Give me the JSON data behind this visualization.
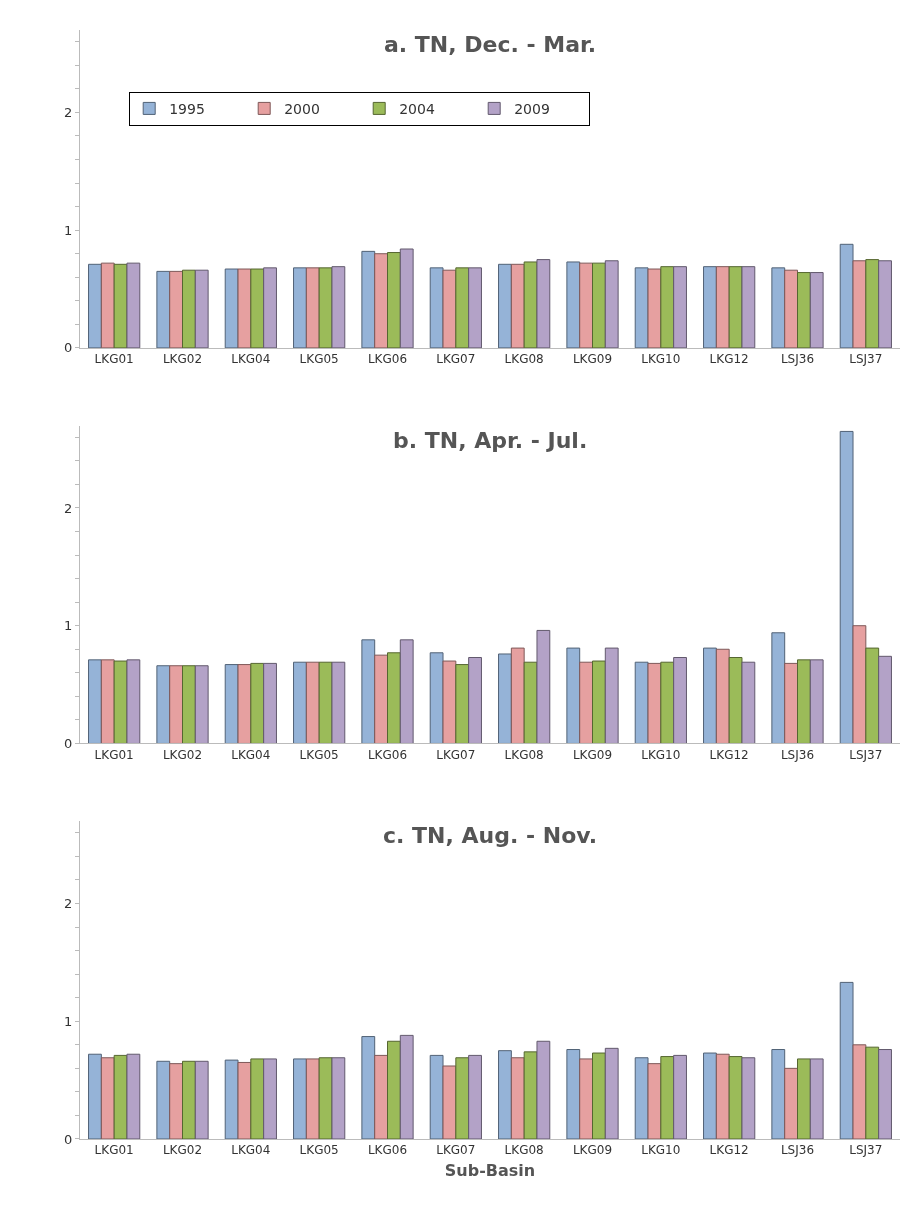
{
  "chart_data": [
    {
      "type": "bar",
      "title": "a. TN, Dec. - Mar.",
      "categories": [
        "LKG01",
        "LKG02",
        "LKG04",
        "LKG05",
        "LKG06",
        "LKG07",
        "LKG08",
        "LKG09",
        "LKG10",
        "LKG12",
        "LSJ36",
        "LSJ37"
      ],
      "ylim": [
        0,
        2.7
      ],
      "yticks": [
        0,
        {
          "value": 0.2,
          "label": null
        },
        {
          "value": 0.4,
          "label": null
        },
        {
          "value": 0.6,
          "label": null
        },
        {
          "value": 0.8,
          "label": null
        },
        1,
        {
          "value": 1.2,
          "label": null
        },
        {
          "value": 1.4,
          "label": null
        },
        {
          "value": 1.6,
          "label": null
        },
        {
          "value": 1.8,
          "label": null
        },
        2,
        {
          "value": 2.2,
          "label": null
        },
        {
          "value": 2.4,
          "label": null
        },
        {
          "value": 2.6,
          "label": null
        }
      ],
      "legend": "top left",
      "series": [
        {
          "name": "1995",
          "color": "#95b3d7",
          "values": [
            0.71,
            0.65,
            0.67,
            0.68,
            0.82,
            0.68,
            0.71,
            0.73,
            0.68,
            0.69,
            0.68,
            0.88
          ]
        },
        {
          "name": "2000",
          "color": "#e6a0a0",
          "values": [
            0.72,
            0.65,
            0.67,
            0.68,
            0.8,
            0.66,
            0.71,
            0.72,
            0.67,
            0.69,
            0.66,
            0.74
          ]
        },
        {
          "name": "2004",
          "color": "#9bbb59",
          "values": [
            0.71,
            0.66,
            0.67,
            0.68,
            0.81,
            0.68,
            0.73,
            0.72,
            0.69,
            0.69,
            0.64,
            0.75
          ]
        },
        {
          "name": "2009",
          "color": "#b3a2c7",
          "values": [
            0.72,
            0.66,
            0.68,
            0.69,
            0.84,
            0.68,
            0.75,
            0.74,
            0.69,
            0.69,
            0.64,
            0.74
          ]
        }
      ]
    },
    {
      "type": "bar",
      "title": "b. TN, Apr. - Jul.",
      "categories": [
        "LKG01",
        "LKG02",
        "LKG04",
        "LKG05",
        "LKG06",
        "LKG07",
        "LKG08",
        "LKG09",
        "LKG10",
        "LKG12",
        "LSJ36",
        "LSJ37"
      ],
      "ylim": [
        0,
        2.7
      ],
      "yticks": [
        0,
        {
          "value": 0.2,
          "label": null
        },
        {
          "value": 0.4,
          "label": null
        },
        {
          "value": 0.6,
          "label": null
        },
        {
          "value": 0.8,
          "label": null
        },
        1,
        {
          "value": 1.2,
          "label": null
        },
        {
          "value": 1.4,
          "label": null
        },
        {
          "value": 1.6,
          "label": null
        },
        {
          "value": 1.8,
          "label": null
        },
        2,
        {
          "value": 2.2,
          "label": null
        },
        {
          "value": 2.4,
          "label": null
        },
        {
          "value": 2.6,
          "label": null
        }
      ],
      "legend": false,
      "series": [
        {
          "color": "#95b3d7",
          "values": [
            0.71,
            0.66,
            0.67,
            0.69,
            0.88,
            0.77,
            0.76,
            0.81,
            0.69,
            0.81,
            0.94,
            2.65
          ]
        },
        {
          "color": "#e6a0a0",
          "values": [
            0.71,
            0.66,
            0.67,
            0.69,
            0.75,
            0.7,
            0.81,
            0.69,
            0.68,
            0.8,
            0.68,
            1.0
          ]
        },
        {
          "color": "#9bbb59",
          "values": [
            0.7,
            0.66,
            0.68,
            0.69,
            0.77,
            0.67,
            0.69,
            0.7,
            0.69,
            0.73,
            0.71,
            0.81
          ]
        },
        {
          "color": "#b3a2c7",
          "values": [
            0.71,
            0.66,
            0.68,
            0.69,
            0.88,
            0.73,
            0.96,
            0.81,
            0.73,
            0.69,
            0.71,
            0.74
          ]
        }
      ]
    },
    {
      "type": "bar",
      "title": "c. TN, Aug. - Nov.",
      "xlabel": "Sub-Basin",
      "categories": [
        "LKG01",
        "LKG02",
        "LKG04",
        "LKG05",
        "LKG06",
        "LKG07",
        "LKG08",
        "LKG09",
        "LKG10",
        "LKG12",
        "LSJ36",
        "LSJ37"
      ],
      "ylim": [
        0,
        2.7
      ],
      "yticks": [
        0,
        {
          "value": 0.2,
          "label": null
        },
        {
          "value": 0.4,
          "label": null
        },
        {
          "value": 0.6,
          "label": null
        },
        {
          "value": 0.8,
          "label": null
        },
        1,
        {
          "value": 1.2,
          "label": null
        },
        {
          "value": 1.4,
          "label": null
        },
        {
          "value": 1.6,
          "label": null
        },
        {
          "value": 1.8,
          "label": null
        },
        2,
        {
          "value": 2.2,
          "label": null
        },
        {
          "value": 2.4,
          "label": null
        },
        {
          "value": 2.6,
          "label": null
        }
      ],
      "legend": false,
      "series": [
        {
          "color": "#95b3d7",
          "values": [
            0.72,
            0.66,
            0.67,
            0.68,
            0.87,
            0.71,
            0.75,
            0.76,
            0.69,
            0.73,
            0.76,
            1.33
          ]
        },
        {
          "color": "#e6a0a0",
          "values": [
            0.69,
            0.64,
            0.65,
            0.68,
            0.71,
            0.62,
            0.69,
            0.68,
            0.64,
            0.72,
            0.6,
            0.8
          ]
        },
        {
          "color": "#9bbb59",
          "values": [
            0.71,
            0.66,
            0.68,
            0.69,
            0.83,
            0.69,
            0.74,
            0.73,
            0.7,
            0.7,
            0.68,
            0.78
          ]
        },
        {
          "color": "#b3a2c7",
          "values": [
            0.72,
            0.66,
            0.68,
            0.69,
            0.88,
            0.71,
            0.83,
            0.77,
            0.71,
            0.69,
            0.68,
            0.76
          ]
        }
      ]
    }
  ]
}
